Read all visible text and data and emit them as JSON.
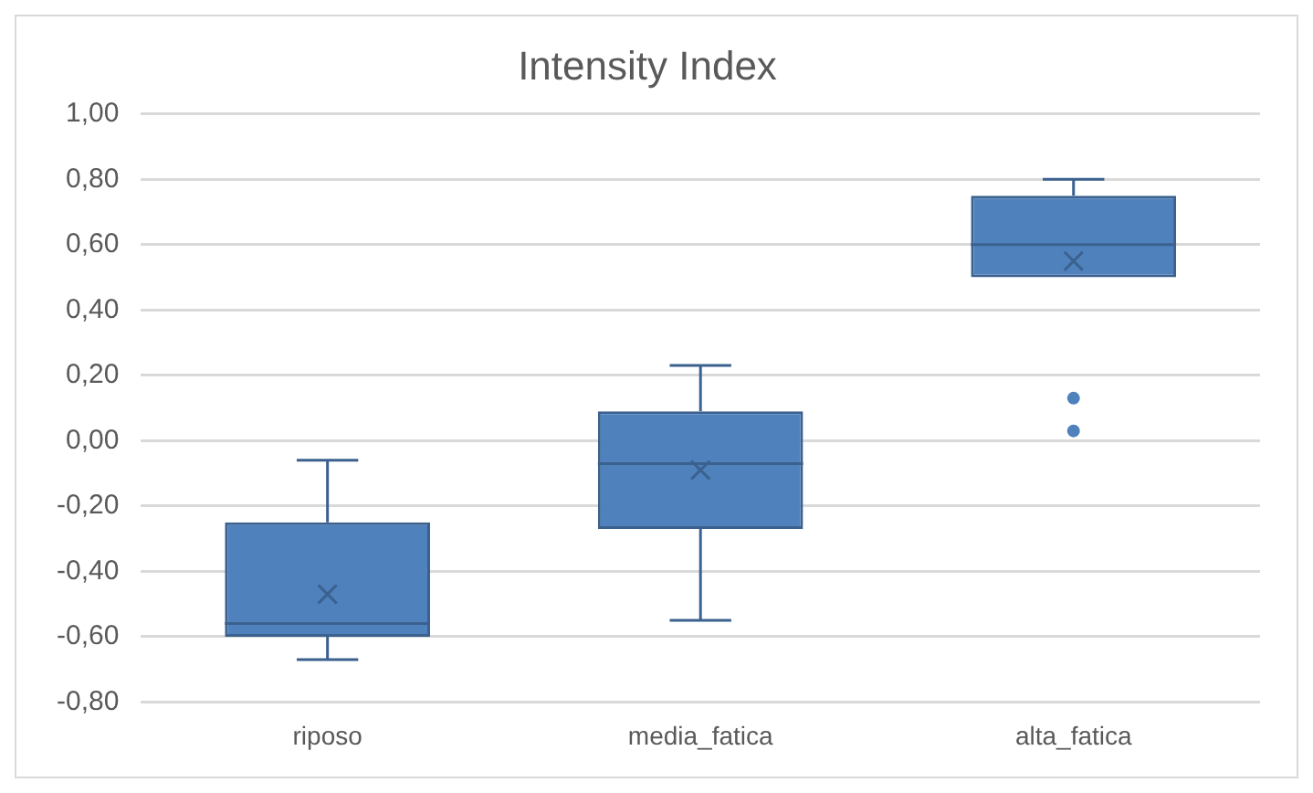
{
  "chart_data": {
    "type": "box",
    "title": "Intensity Index",
    "categories": [
      "riposo",
      "media_fatica",
      "alta_fatica"
    ],
    "color": "#4f81bd",
    "boxes": [
      {
        "low": -0.67,
        "q1": -0.6,
        "median": -0.56,
        "q3": -0.25,
        "high": -0.06,
        "mean": -0.47
      },
      {
        "low": -0.55,
        "q1": -0.27,
        "median": -0.07,
        "q3": 0.09,
        "high": 0.23,
        "mean": -0.09
      },
      {
        "low": 0.5,
        "q1": 0.5,
        "median": 0.6,
        "q3": 0.75,
        "high": 0.8,
        "mean": 0.55,
        "outliers": [
          0.13,
          0.03
        ]
      }
    ],
    "ylim": [
      -0.8,
      1
    ],
    "yticks": [
      {
        "value": -0.8,
        "label": "-0,80"
      },
      {
        "value": -0.6,
        "label": "-0,60"
      },
      {
        "value": -0.4,
        "label": "-0,40"
      },
      {
        "value": -0.2,
        "label": "-0,20"
      },
      {
        "value": 0,
        "label": "0,00"
      },
      {
        "value": 0.2,
        "label": "0,20"
      },
      {
        "value": 0.4,
        "label": "0,40"
      },
      {
        "value": 0.6,
        "label": "0,60"
      },
      {
        "value": 0.8,
        "label": "0,80"
      },
      {
        "value": 1,
        "label": "1,00"
      }
    ],
    "grid": "y",
    "legend": false
  }
}
